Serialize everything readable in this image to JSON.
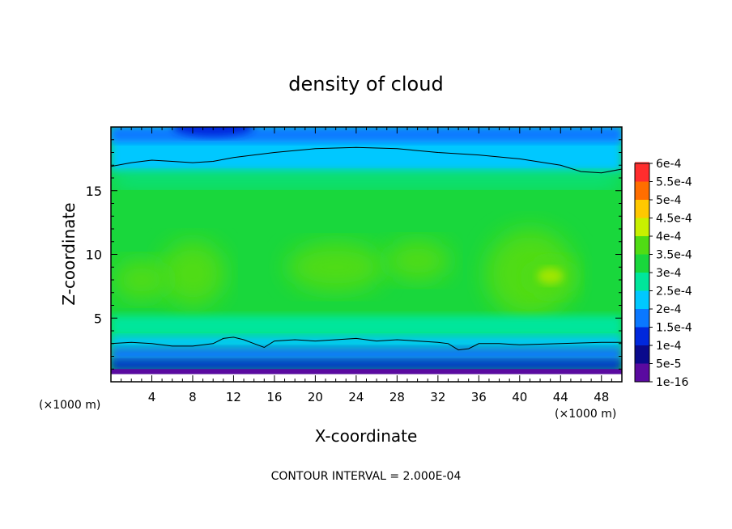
{
  "chart_data": {
    "type": "heatmap",
    "title": "density of cloud",
    "xlabel": "X-coordinate",
    "ylabel": "Z-coordinate",
    "x_unit_left": "(×1000 m)",
    "x_unit_right": "(×1000 m)",
    "xlim": [
      0,
      50
    ],
    "ylim": [
      0,
      20
    ],
    "x_ticks": [
      4,
      8,
      12,
      16,
      20,
      24,
      28,
      32,
      36,
      40,
      44,
      48
    ],
    "x_tick_labels": [
      "4",
      "8",
      "12",
      "16",
      "20",
      "24",
      "28",
      "32",
      "36",
      "40",
      "44",
      "48"
    ],
    "y_ticks": [
      5,
      10,
      15
    ],
    "y_tick_labels": [
      "5",
      "10",
      "15"
    ],
    "footer": "CONTOUR INTERVAL = 2.000E-04",
    "colorbar": {
      "levels": [
        "1e-16",
        "5e-5",
        "1e-4",
        "1.5e-4",
        "2e-4",
        "2.5e-4",
        "3e-4",
        "3.5e-4",
        "4e-4",
        "4.5e-4",
        "5e-4",
        "5.5e-4",
        "6e-4"
      ],
      "colors": [
        "#5a0aa0",
        "#0a0a8c",
        "#0028dc",
        "#0a78ff",
        "#00c8ff",
        "#00e69b",
        "#19d73c",
        "#50dc14",
        "#c8f000",
        "#ffc800",
        "#ff6e00",
        "#ff2d2d",
        "#ff7878"
      ]
    },
    "contour_lines": [
      {
        "level": "2e-4",
        "x": [
          0,
          2,
          4,
          6,
          8,
          10,
          12,
          16,
          20,
          24,
          28,
          32,
          36,
          40,
          44,
          46,
          48,
          50
        ],
        "z": [
          16.9,
          17.2,
          17.4,
          17.3,
          17.2,
          17.3,
          17.6,
          18.0,
          18.3,
          18.4,
          18.3,
          18.0,
          17.8,
          17.5,
          17.0,
          16.5,
          16.4,
          16.7
        ]
      },
      {
        "level": "2e-4",
        "x": [
          0,
          2,
          4,
          6,
          8,
          10,
          11,
          12,
          13,
          14,
          15,
          16,
          18,
          20,
          22,
          24,
          26,
          28,
          30,
          32,
          33,
          34,
          35,
          36,
          38,
          40,
          44,
          48,
          50
        ],
        "z": [
          3.0,
          3.1,
          3.0,
          2.8,
          2.8,
          3.0,
          3.4,
          3.5,
          3.3,
          3.0,
          2.7,
          3.2,
          3.3,
          3.2,
          3.3,
          3.4,
          3.2,
          3.3,
          3.2,
          3.1,
          3.0,
          2.5,
          2.6,
          3.0,
          3.0,
          2.9,
          3.0,
          3.1,
          3.1
        ]
      }
    ],
    "field_description_levels": {
      "top_band_z": [
        17,
        20
      ],
      "main_band_z": [
        3.5,
        16
      ],
      "peak_value": "4e-4",
      "bottom_band_z": [
        0,
        3
      ]
    }
  }
}
